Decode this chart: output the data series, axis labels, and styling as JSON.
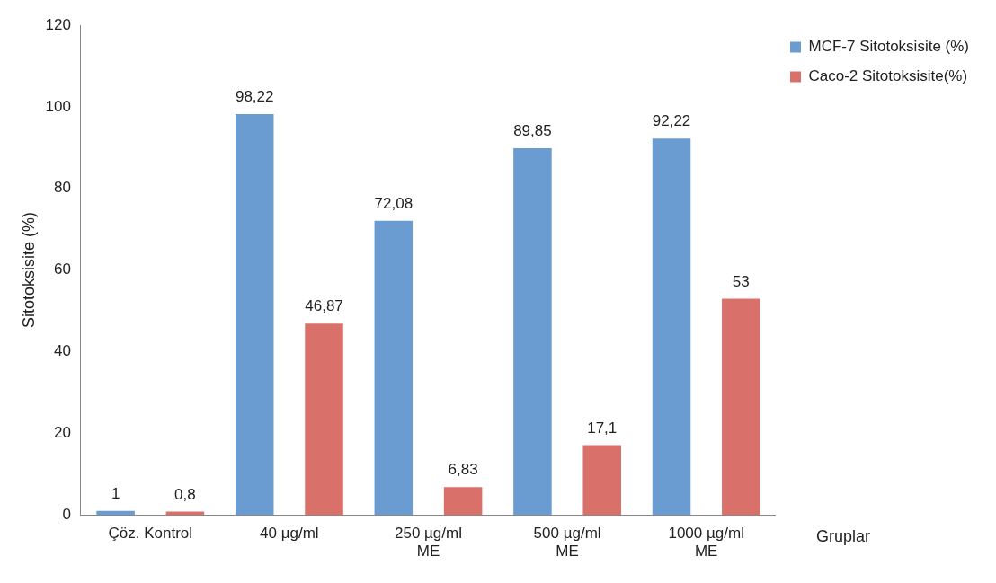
{
  "chart_data": {
    "type": "bar",
    "ylabel": "Sitotoksisite (%)",
    "xlabel": "Gruplar",
    "categories": [
      "Çöz. Kontrol",
      "40 µg/ml",
      "250 µg/ml\nME",
      "500 µg/ml\nME",
      "1000 µg/ml\nME"
    ],
    "series": [
      {
        "name": "MCF-7 Sitotoksisite (%)",
        "color": "#6a9bd1",
        "values": [
          1,
          98.22,
          72.08,
          89.85,
          92.22
        ],
        "value_labels": [
          "1",
          "98,22",
          "72,08",
          "89,85",
          "92,22"
        ]
      },
      {
        "name": "Caco-2 Sitotoksisite(%)",
        "color": "#d9706a",
        "values": [
          0.8,
          46.87,
          6.83,
          17.1,
          53
        ],
        "value_labels": [
          "0,8",
          "46,87",
          "6,83",
          "17,1",
          "53"
        ]
      }
    ],
    "ylim": [
      0,
      120
    ],
    "yticks": [
      0,
      20,
      40,
      60,
      80,
      100,
      120
    ],
    "grid": false,
    "legend": "top right"
  }
}
